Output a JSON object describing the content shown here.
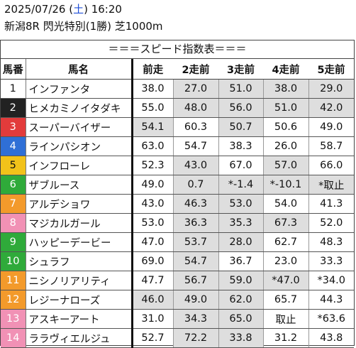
{
  "header": {
    "date_prefix": "2025/07/26 (",
    "weekday": "土",
    "date_suffix": ") 16:20",
    "race": "新潟8R 閃光特別(1勝) 芝1000m"
  },
  "title": "＝＝＝スピード指数表＝＝＝",
  "columns": [
    "馬番",
    "馬名",
    "前走",
    "2走前",
    "3走前",
    "4走前",
    "5走前"
  ],
  "colors": {
    "frame1": "#ffffff",
    "frame2": "#222222",
    "frame3": "#e23b3b",
    "frame4": "#2f6fd6",
    "frame5": "#f2c21a",
    "frame6": "#2faa3a",
    "frame7": "#f39a2b",
    "frame8": "#f191b5",
    "shade": "#dedede"
  },
  "rows": [
    {
      "num": "1",
      "name": "インファンタ",
      "v": [
        "38.0",
        "27.0",
        "51.0",
        "38.0",
        "29.0"
      ]
    },
    {
      "num": "2",
      "name": "ヒメカミノイタダキ",
      "v": [
        "55.0",
        "48.0",
        "56.0",
        "51.0",
        "42.0"
      ]
    },
    {
      "num": "3",
      "name": "スーパーバイザー",
      "v": [
        "54.1",
        "60.3",
        "50.7",
        "50.6",
        "49.0"
      ]
    },
    {
      "num": "4",
      "name": "ラインパシオン",
      "v": [
        "63.0",
        "54.7",
        "38.3",
        "26.0",
        "58.7"
      ]
    },
    {
      "num": "5",
      "name": "インフローレ",
      "v": [
        "52.3",
        "43.0",
        "67.0",
        "57.0",
        "66.0"
      ]
    },
    {
      "num": "6",
      "name": "ザブルース",
      "v": [
        "49.0",
        "0.7",
        "*-1.4",
        "*-10.1",
        "*取止"
      ]
    },
    {
      "num": "7",
      "name": "アルデショワ",
      "v": [
        "43.0",
        "46.3",
        "53.0",
        "54.0",
        "41.3"
      ]
    },
    {
      "num": "8",
      "name": "マジカルガール",
      "v": [
        "53.0",
        "36.3",
        "35.3",
        "67.3",
        "52.0"
      ]
    },
    {
      "num": "9",
      "name": "ハッピーデービー",
      "v": [
        "47.0",
        "53.7",
        "28.0",
        "62.7",
        "48.3"
      ]
    },
    {
      "num": "10",
      "name": "シュラフ",
      "v": [
        "69.0",
        "54.7",
        "36.7",
        "23.0",
        "33.3"
      ]
    },
    {
      "num": "11",
      "name": "ニシノリアリティ",
      "v": [
        "47.7",
        "56.7",
        "59.0",
        "*47.0",
        "*34.0"
      ]
    },
    {
      "num": "12",
      "name": "レジーナローズ",
      "v": [
        "46.0",
        "49.0",
        "62.0",
        "65.7",
        "44.3"
      ]
    },
    {
      "num": "13",
      "name": "アスキーアート",
      "v": [
        "31.0",
        "34.3",
        "65.0",
        "取止",
        "*63.6"
      ]
    },
    {
      "num": "14",
      "name": "ララヴィエルジュ",
      "v": [
        "52.7",
        "72.2",
        "33.8",
        "31.2",
        "43.8"
      ]
    }
  ]
}
